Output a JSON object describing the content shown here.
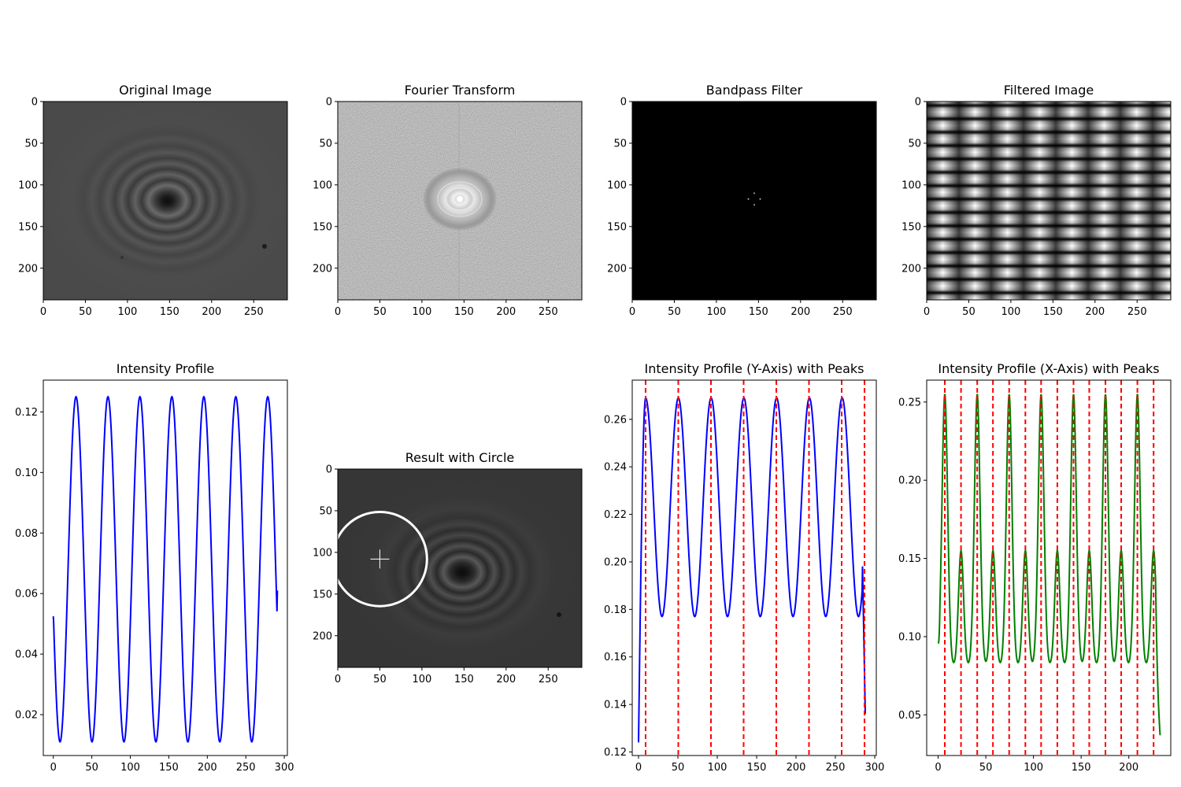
{
  "figure": {
    "panels": [
      {
        "title": "Original Image"
      },
      {
        "title": "Fourier Transform"
      },
      {
        "title": "Bandpass Filter"
      },
      {
        "title": "Filtered Image"
      },
      {
        "title": "Intensity Profile"
      },
      {
        "title": "Result with Circle"
      },
      {
        "title": "Intensity Profile (Y-Axis) with Peaks"
      },
      {
        "title": "Intensity Profile (X-Axis) with Peaks"
      }
    ]
  },
  "chart_data": [
    {
      "type": "heatmap",
      "title": "Original Image",
      "xlim": [
        0,
        290
      ],
      "ylim": [
        238,
        0
      ],
      "xticks": [
        0,
        50,
        100,
        150,
        200,
        250
      ],
      "yticks": [
        0,
        50,
        100,
        150,
        200
      ],
      "description_values": {
        "ring_center": [
          150,
          120
        ]
      },
      "colormap": "gray"
    },
    {
      "type": "heatmap",
      "title": "Fourier Transform",
      "xlim": [
        0,
        290
      ],
      "ylim": [
        238,
        0
      ],
      "xticks": [
        0,
        50,
        100,
        150,
        200,
        250
      ],
      "yticks": [
        0,
        50,
        100,
        150,
        200
      ],
      "colormap": "gray"
    },
    {
      "type": "heatmap",
      "title": "Bandpass Filter",
      "xlim": [
        0,
        290
      ],
      "ylim": [
        238,
        0
      ],
      "xticks": [
        0,
        50,
        100,
        150,
        200,
        250
      ],
      "yticks": [
        0,
        50,
        100,
        150,
        200
      ],
      "colormap": "gray",
      "bright_points": [
        [
          145,
          110
        ],
        [
          138,
          117
        ],
        [
          152,
          117
        ],
        [
          145,
          124
        ]
      ]
    },
    {
      "type": "heatmap",
      "title": "Filtered Image",
      "xlim": [
        0,
        290
      ],
      "ylim": [
        238,
        0
      ],
      "xticks": [
        0,
        50,
        100,
        150,
        200,
        250
      ],
      "yticks": [
        0,
        50,
        100,
        150,
        200
      ],
      "colormap": "gray"
    },
    {
      "type": "line",
      "title": "Intensity Profile",
      "xlim": [
        -13,
        304
      ],
      "ylim": [
        0.0065,
        0.1305
      ],
      "xticks": [
        0,
        50,
        100,
        150,
        200,
        250,
        300
      ],
      "yticks": [
        0.02,
        0.04,
        0.06,
        0.08,
        0.1,
        0.12
      ],
      "ytick_labels": [
        "0.02",
        "0.04",
        "0.06",
        "0.08",
        "0.10",
        "0.12"
      ],
      "series": [
        {
          "color": "#0000ff",
          "function": "sine",
          "x_range": [
            0,
            291
          ],
          "min": 0.011,
          "max": 0.125,
          "period": 41.5,
          "first_peak_x": 29.5,
          "start_y": 0.0525,
          "end_y": 0.061
        }
      ]
    },
    {
      "type": "heatmap",
      "title": "Result with Circle",
      "xlim": [
        0,
        290
      ],
      "ylim": [
        238,
        0
      ],
      "xticks": [
        0,
        50,
        100,
        150,
        200,
        250
      ],
      "yticks": [
        0,
        50,
        100,
        150,
        200
      ],
      "colormap": "gray",
      "circle": {
        "center": [
          50,
          108
        ],
        "radius": 56
      },
      "marker": {
        "type": "plus",
        "x": 50,
        "y": 108
      }
    },
    {
      "type": "line",
      "title": "Intensity Profile (Y-Axis) with Peaks",
      "xlim": [
        -8,
        302
      ],
      "ylim": [
        0.1185,
        0.2765
      ],
      "xticks": [
        0,
        50,
        100,
        150,
        200,
        250,
        300
      ],
      "yticks": [
        0.12,
        0.14,
        0.16,
        0.18,
        0.2,
        0.22,
        0.24,
        0.26
      ],
      "ytick_labels": [
        "0.12",
        "0.14",
        "0.16",
        "0.18",
        "0.20",
        "0.22",
        "0.24",
        "0.26"
      ],
      "series": [
        {
          "color": "#0000ff",
          "function": "sine_with_start_transient",
          "x_range": [
            0,
            288
          ],
          "min": 0.177,
          "max": 0.269,
          "period": 41.6,
          "first_peak_x": 9,
          "start_y": 0.124,
          "end_y": 0.136
        }
      ],
      "peaks_x": [
        9,
        50.5,
        92,
        133.5,
        175,
        216.5,
        258,
        287
      ],
      "peak_line_color": "#ff0000"
    },
    {
      "type": "line",
      "title": "Intensity Profile (X-Axis) with Peaks",
      "xlim": [
        -12,
        244
      ],
      "ylim": [
        0.024,
        0.264
      ],
      "xticks": [
        0,
        50,
        100,
        150,
        200
      ],
      "yticks": [
        0.05,
        0.1,
        0.15,
        0.2,
        0.25
      ],
      "ytick_labels": [
        "0.05",
        "0.10",
        "0.15",
        "0.20",
        "0.25"
      ],
      "series": [
        {
          "color": "#008000",
          "function": "double_peak",
          "x_range": [
            0,
            233
          ],
          "period": 33.5,
          "tall_peak": 0.255,
          "short_peak": 0.155,
          "min": 0.081,
          "start_y": 0.096,
          "end_y": 0.035
        }
      ],
      "peaks_x": [
        7,
        24,
        41,
        57.5,
        74.5,
        91.5,
        108,
        125,
        142,
        158.5,
        175.5,
        192,
        209,
        226
      ],
      "peak_line_color": "#ff0000"
    }
  ]
}
